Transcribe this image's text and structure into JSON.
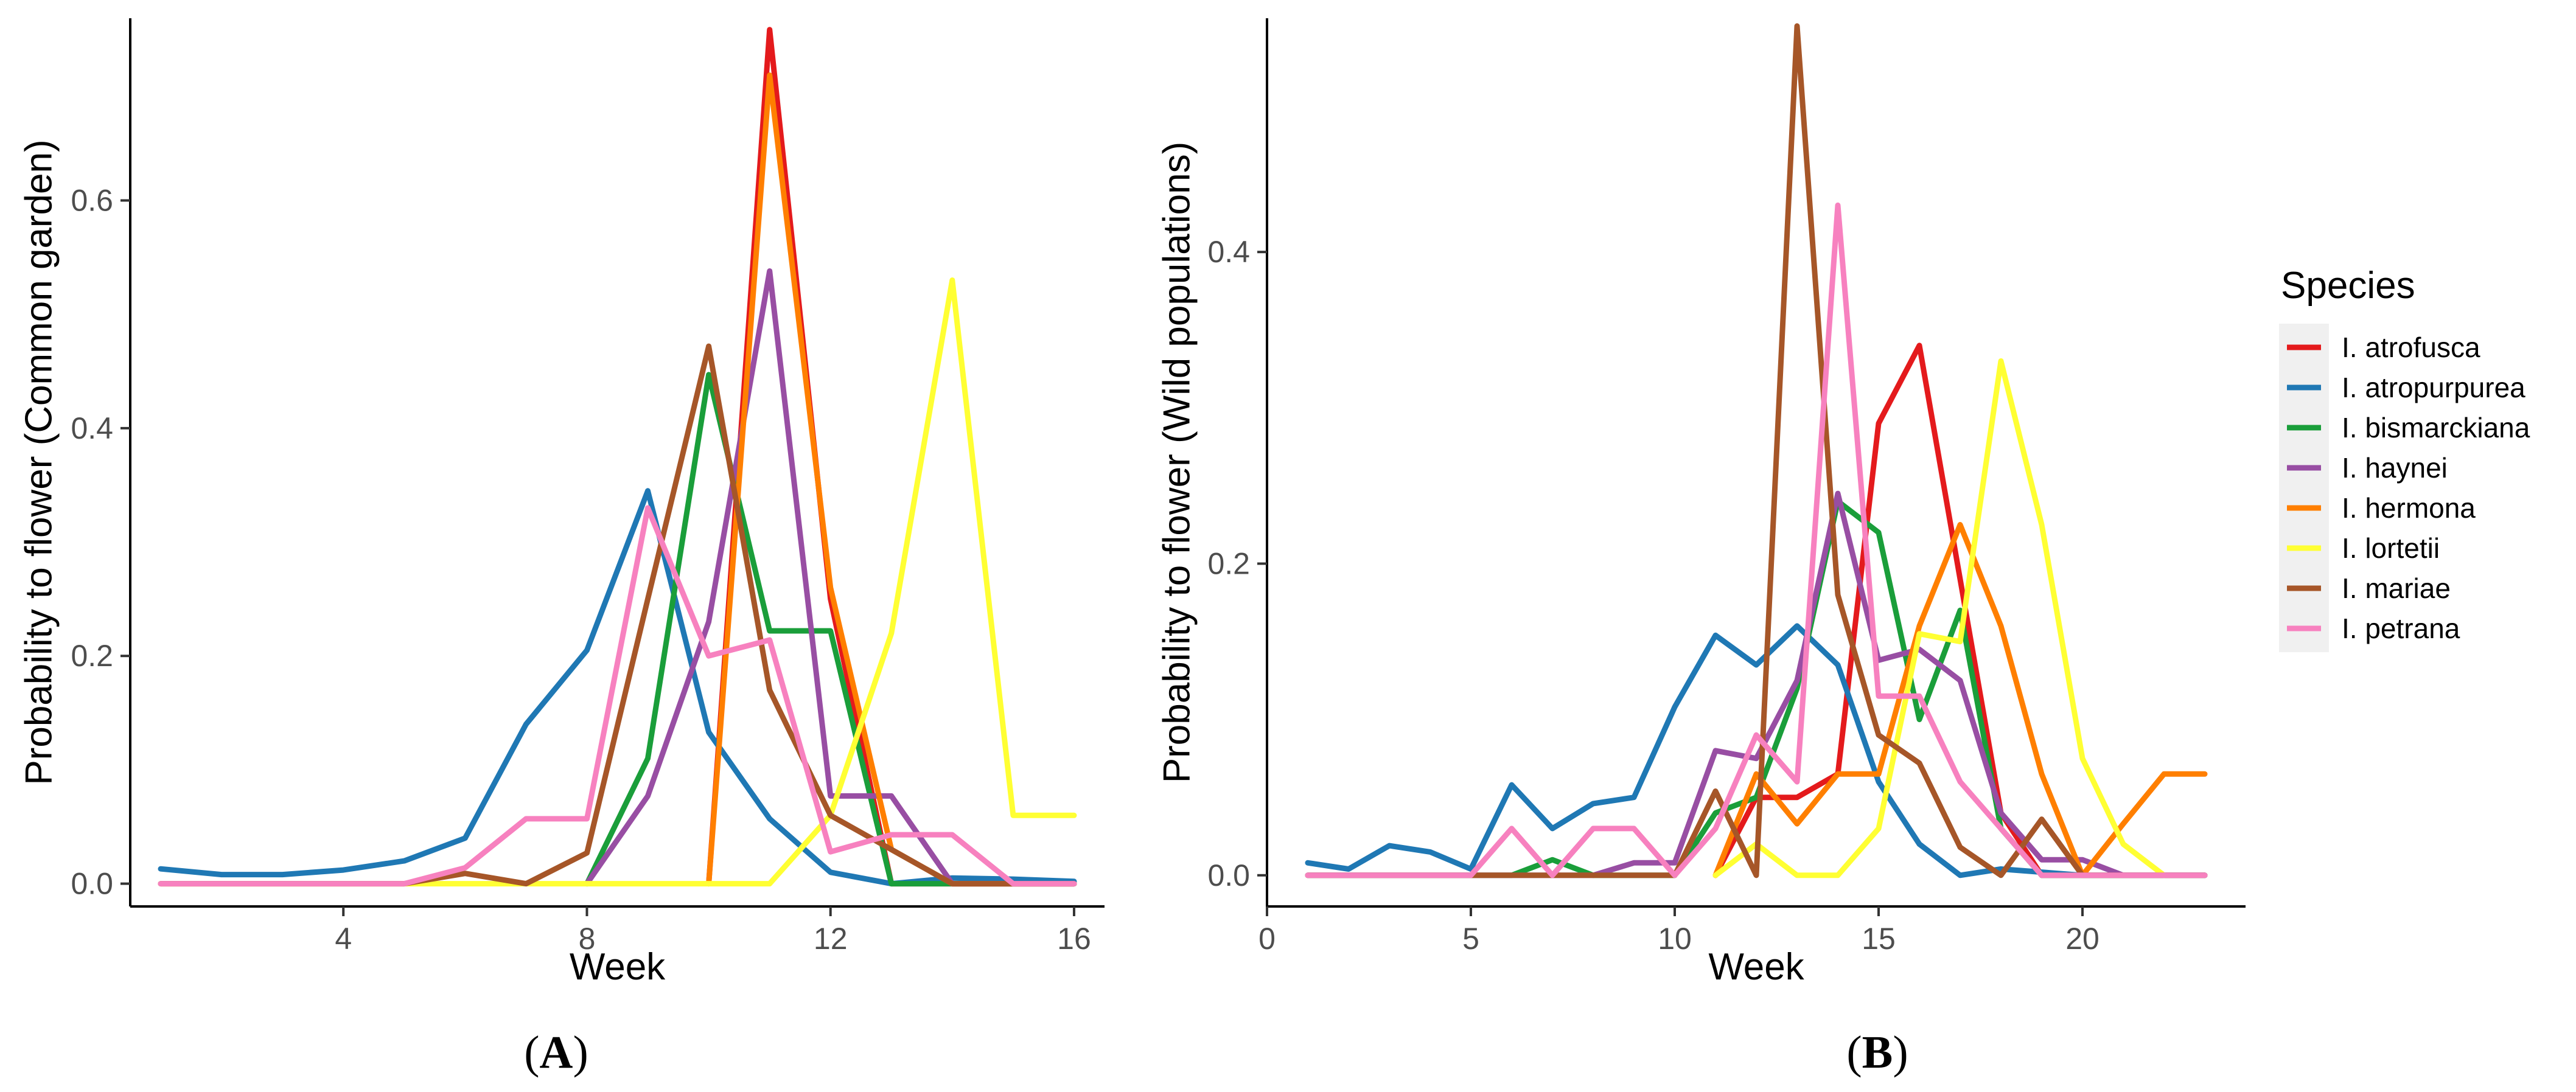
{
  "legend": {
    "title": "Species",
    "entries": [
      {
        "name": "I. atrofusca",
        "color": "#e41a1c"
      },
      {
        "name": "I. atropurpurea",
        "color": "#1f78b4"
      },
      {
        "name": "I. bismarckiana",
        "color": "#1a9e3a"
      },
      {
        "name": "I. haynei",
        "color": "#984ea3"
      },
      {
        "name": "I. hermona",
        "color": "#ff7f00"
      },
      {
        "name": "I. lortetii",
        "color": "#ffff33"
      },
      {
        "name": "I. mariae",
        "color": "#a65628"
      },
      {
        "name": "I. petrana",
        "color": "#f781bf"
      }
    ]
  },
  "chart_data": [
    {
      "type": "line",
      "panel_label": "(A)",
      "panel_letter": "A",
      "xlabel": "Week",
      "ylabel": "Probability to flower (Common garden)",
      "xlim": [
        0.5,
        16.5
      ],
      "ylim": [
        -0.02,
        0.76
      ],
      "xticks": [
        4,
        8,
        12,
        16
      ],
      "yticks": [
        0.0,
        0.2,
        0.4,
        0.6
      ],
      "ytick_labels": [
        "0.0",
        "0.2",
        "0.4",
        "0.6"
      ],
      "grid": false,
      "series": [
        {
          "name": "I. atrofusca",
          "x": [
            10,
            11,
            12,
            13,
            14,
            15,
            16
          ],
          "y": [
            0.0,
            0.75,
            0.25,
            0.0,
            0.0,
            0.0,
            0.0
          ]
        },
        {
          "name": "I. atropurpurea",
          "x": [
            1,
            2,
            3,
            4,
            5,
            6,
            7,
            8,
            9,
            10,
            11,
            12,
            13,
            14,
            15,
            16
          ],
          "y": [
            0.013,
            0.008,
            0.008,
            0.012,
            0.02,
            0.04,
            0.14,
            0.205,
            0.345,
            0.133,
            0.057,
            0.01,
            0.0,
            0.005,
            0.004,
            0.002
          ]
        },
        {
          "name": "I. bismarckiana",
          "x": [
            8,
            9,
            10,
            11,
            12,
            13,
            14,
            15,
            16
          ],
          "y": [
            0.0,
            0.11,
            0.447,
            0.222,
            0.222,
            0.0,
            0.0,
            0.0,
            0.0
          ]
        },
        {
          "name": "I. haynei",
          "x": [
            8,
            9,
            10,
            11,
            12,
            13,
            14,
            15,
            16
          ],
          "y": [
            0.0,
            0.077,
            0.23,
            0.538,
            0.077,
            0.077,
            0.0,
            0.0,
            0.0
          ]
        },
        {
          "name": "I. hermona",
          "x": [
            10,
            11,
            12,
            13,
            14,
            15,
            16
          ],
          "y": [
            0.0,
            0.71,
            0.26,
            0.03,
            0.0,
            0.0,
            0.0
          ]
        },
        {
          "name": "I. lortetii",
          "x": [
            1,
            2,
            3,
            4,
            5,
            6,
            7,
            8,
            9,
            10,
            11,
            12,
            13,
            14,
            15,
            16
          ],
          "y": [
            0,
            0,
            0,
            0,
            0,
            0,
            0,
            0,
            0,
            0,
            0,
            0.06,
            0.22,
            0.53,
            0.06,
            0.06
          ]
        },
        {
          "name": "I. mariae",
          "x": [
            1,
            2,
            3,
            4,
            5,
            6,
            7,
            8,
            9,
            10,
            11,
            12,
            13,
            14,
            15,
            16
          ],
          "y": [
            0,
            0,
            0,
            0,
            0,
            0.009,
            0.0,
            0.027,
            0.25,
            0.472,
            0.17,
            0.06,
            0.03,
            0.0,
            0.0,
            0.0
          ]
        },
        {
          "name": "I. petrana",
          "x": [
            1,
            2,
            3,
            4,
            5,
            6,
            7,
            8,
            9,
            10,
            11,
            12,
            13,
            14,
            15,
            16
          ],
          "y": [
            0,
            0,
            0,
            0,
            0,
            0.014,
            0.057,
            0.057,
            0.33,
            0.2,
            0.214,
            0.028,
            0.043,
            0.043,
            0.0,
            0.0
          ]
        }
      ]
    },
    {
      "type": "line",
      "panel_label": "(B)",
      "panel_letter": "B",
      "xlabel": "Week",
      "ylabel": "Probability to flower (Wild populations)",
      "xlim": [
        0,
        24
      ],
      "ylim": [
        -0.02,
        0.55
      ],
      "xticks": [
        0,
        5,
        10,
        15,
        20
      ],
      "yticks": [
        0.0,
        0.2,
        0.4
      ],
      "ytick_labels": [
        "0.0",
        "0.2",
        "0.4"
      ],
      "grid": false,
      "series": [
        {
          "name": "I. atrofusca",
          "x": [
            11,
            12,
            13,
            14,
            15,
            16,
            17,
            18,
            19,
            20,
            21,
            22,
            23
          ],
          "y": [
            0.0,
            0.05,
            0.05,
            0.065,
            0.29,
            0.34,
            0.19,
            0.04,
            0.0,
            0.0,
            0.0,
            0.0,
            0.0
          ]
        },
        {
          "name": "I. atropurpurea",
          "x": [
            1,
            2,
            3,
            4,
            5,
            6,
            7,
            8,
            9,
            10,
            11,
            12,
            13,
            14,
            15,
            16,
            17,
            18,
            19,
            20,
            21,
            22,
            23
          ],
          "y": [
            0.008,
            0.004,
            0.019,
            0.015,
            0.004,
            0.058,
            0.03,
            0.046,
            0.05,
            0.108,
            0.154,
            0.135,
            0.16,
            0.135,
            0.06,
            0.02,
            0.0,
            0.004,
            0.002,
            0.0,
            0.0,
            0.0,
            0.0
          ]
        },
        {
          "name": "I. bismarckiana",
          "x": [
            1,
            2,
            3,
            4,
            5,
            6,
            7,
            8,
            9,
            10,
            11,
            12,
            13,
            14,
            15,
            16,
            17,
            18,
            19,
            20,
            21,
            22,
            23
          ],
          "y": [
            0,
            0,
            0,
            0,
            0,
            0.0,
            0.01,
            0.0,
            0.0,
            0.0,
            0.04,
            0.05,
            0.12,
            0.24,
            0.22,
            0.1,
            0.17,
            0.03,
            0.0,
            0.0,
            0.0,
            0.0,
            0.0
          ]
        },
        {
          "name": "I. haynei",
          "x": [
            1,
            2,
            3,
            4,
            5,
            6,
            7,
            8,
            9,
            10,
            11,
            12,
            13,
            14,
            15,
            16,
            17,
            18,
            19,
            20,
            21,
            22,
            23
          ],
          "y": [
            0,
            0,
            0,
            0,
            0,
            0,
            0,
            0.0,
            0.008,
            0.008,
            0.08,
            0.075,
            0.125,
            0.245,
            0.138,
            0.145,
            0.125,
            0.04,
            0.01,
            0.01,
            0.0,
            0.0,
            0.0
          ]
        },
        {
          "name": "I. hermona",
          "x": [
            11,
            12,
            13,
            14,
            15,
            16,
            17,
            18,
            19,
            20,
            21,
            22,
            23
          ],
          "y": [
            0.0,
            0.065,
            0.033,
            0.065,
            0.065,
            0.16,
            0.225,
            0.16,
            0.065,
            0.0,
            0.033,
            0.065,
            0.065
          ]
        },
        {
          "name": "I. lortetii",
          "x": [
            11,
            12,
            13,
            14,
            15,
            16,
            17,
            18,
            19,
            20,
            21,
            22
          ],
          "y": [
            0.0,
            0.02,
            0.0,
            0.0,
            0.03,
            0.155,
            0.15,
            0.33,
            0.225,
            0.075,
            0.02,
            0.0
          ]
        },
        {
          "name": "I. mariae",
          "x": [
            1,
            2,
            3,
            4,
            5,
            6,
            7,
            8,
            9,
            10,
            11,
            12,
            13,
            14,
            15,
            16,
            17,
            18,
            19,
            20,
            21,
            22,
            23
          ],
          "y": [
            0,
            0,
            0,
            0,
            0,
            0,
            0,
            0,
            0,
            0,
            0.054,
            0.0,
            0.545,
            0.18,
            0.09,
            0.072,
            0.018,
            0.0,
            0.036,
            0.0,
            0.0,
            0.0,
            0.0
          ]
        },
        {
          "name": "I. petrana",
          "x": [
            1,
            2,
            3,
            4,
            5,
            6,
            7,
            8,
            9,
            10,
            11,
            12,
            13,
            14,
            15,
            16,
            17,
            18,
            19,
            20,
            21,
            22,
            23
          ],
          "y": [
            0,
            0,
            0,
            0,
            0,
            0.03,
            0.0,
            0.03,
            0.03,
            0.0,
            0.03,
            0.09,
            0.06,
            0.43,
            0.115,
            0.115,
            0.06,
            0.03,
            0.0,
            0.0,
            0.0,
            0.0,
            0.0
          ]
        }
      ]
    }
  ]
}
